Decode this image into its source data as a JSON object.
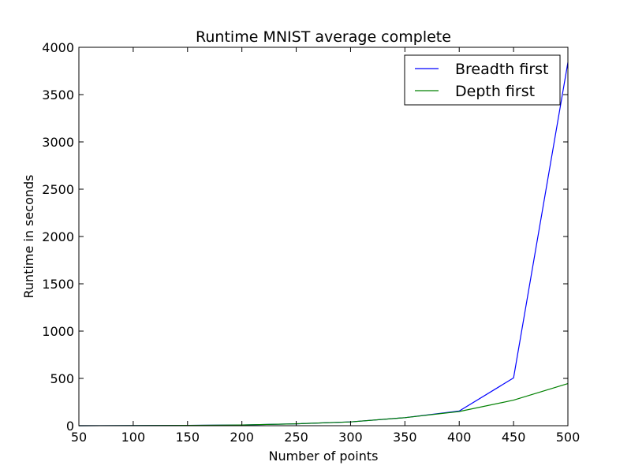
{
  "chart_data": {
    "type": "line",
    "title": "Runtime MNIST average complete",
    "xlabel": "Number of points",
    "ylabel": "Runtime in seconds",
    "xlim": [
      50,
      500
    ],
    "ylim": [
      0,
      4000
    ],
    "xticks": [
      50,
      100,
      150,
      200,
      250,
      300,
      350,
      400,
      450,
      500
    ],
    "yticks": [
      0,
      500,
      1000,
      1500,
      2000,
      2500,
      3000,
      3500,
      4000
    ],
    "x": [
      50,
      100,
      150,
      200,
      250,
      300,
      350,
      400,
      450,
      500
    ],
    "series": [
      {
        "name": "Breadth first",
        "color": "#0000ff",
        "values": [
          0,
          1,
          3,
          8,
          20,
          40,
          85,
          155,
          505,
          3840
        ]
      },
      {
        "name": "Depth first",
        "color": "#008000",
        "values": [
          0,
          1,
          3,
          8,
          20,
          40,
          85,
          150,
          270,
          445
        ]
      }
    ],
    "grid": false,
    "legend_position": "top-right"
  }
}
